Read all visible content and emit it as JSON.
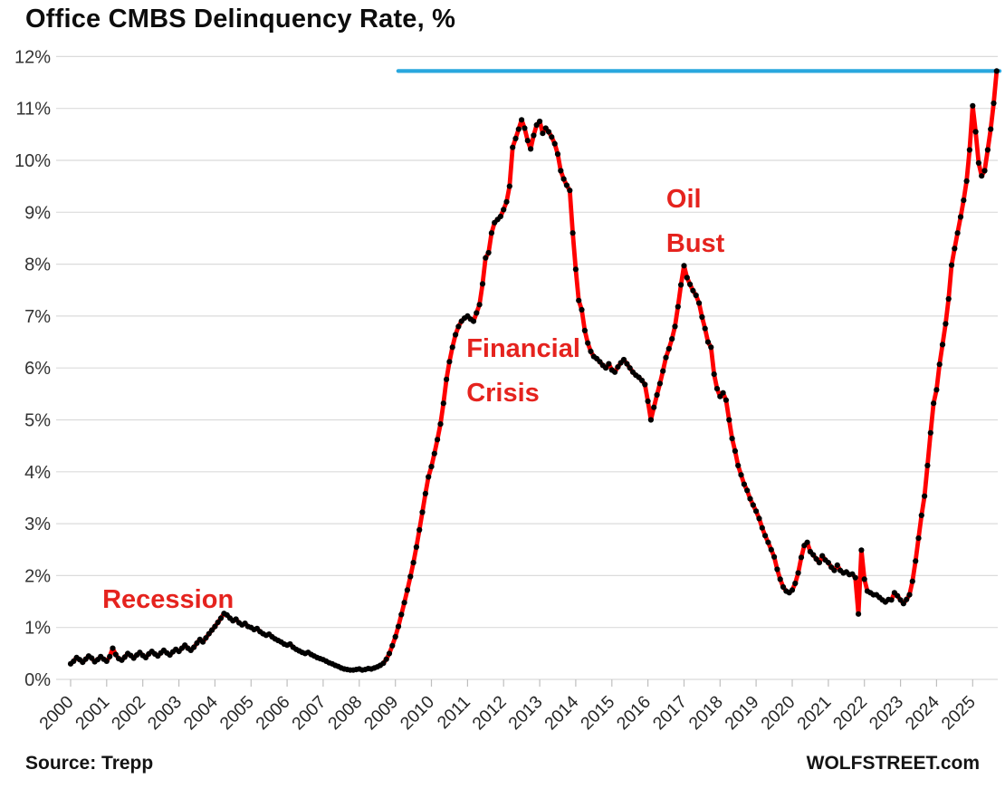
{
  "title": "Office CMBS Delinquency Rate, %",
  "source": "Source: Trepp",
  "watermark": "WOLFSTREET.com",
  "chart_data": {
    "type": "line",
    "title": "Office CMBS Delinquency Rate, %",
    "ylabel": "",
    "xlabel": "",
    "ylim": [
      0,
      12
    ],
    "y_ticks": [
      0,
      1,
      2,
      3,
      4,
      5,
      6,
      7,
      8,
      9,
      10,
      11,
      12
    ],
    "y_tick_suffix": "%",
    "x_tick_years": [
      2000,
      2001,
      2002,
      2003,
      2004,
      2005,
      2006,
      2007,
      2008,
      2009,
      2010,
      2011,
      2012,
      2013,
      2014,
      2015,
      2016,
      2017,
      2018,
      2019,
      2020,
      2021,
      2022,
      2023,
      2024,
      2025
    ],
    "grid": "horizontal",
    "legend_position": "none",
    "series": [
      {
        "name": "Office CMBS delinquency rate, monthly, %",
        "line_color": "#FF0000",
        "marker_color": "#000000",
        "start_year": 2000,
        "frequency": "monthly",
        "monthly_values": [
          0.3,
          0.35,
          0.42,
          0.38,
          0.33,
          0.39,
          0.45,
          0.41,
          0.34,
          0.38,
          0.44,
          0.39,
          0.35,
          0.44,
          0.6,
          0.48,
          0.4,
          0.37,
          0.43,
          0.5,
          0.46,
          0.41,
          0.47,
          0.52,
          0.46,
          0.42,
          0.49,
          0.54,
          0.49,
          0.45,
          0.51,
          0.56,
          0.51,
          0.47,
          0.53,
          0.58,
          0.54,
          0.6,
          0.66,
          0.6,
          0.56,
          0.62,
          0.7,
          0.77,
          0.72,
          0.8,
          0.88,
          0.95,
          1.02,
          1.1,
          1.18,
          1.27,
          1.24,
          1.18,
          1.13,
          1.16,
          1.09,
          1.05,
          1.08,
          1.02,
          1.0,
          0.96,
          0.98,
          0.92,
          0.88,
          0.85,
          0.87,
          0.82,
          0.78,
          0.75,
          0.72,
          0.68,
          0.66,
          0.68,
          0.62,
          0.58,
          0.55,
          0.52,
          0.5,
          0.52,
          0.48,
          0.45,
          0.42,
          0.4,
          0.38,
          0.35,
          0.32,
          0.3,
          0.27,
          0.25,
          0.22,
          0.2,
          0.19,
          0.18,
          0.18,
          0.19,
          0.2,
          0.18,
          0.19,
          0.21,
          0.2,
          0.22,
          0.24,
          0.27,
          0.31,
          0.39,
          0.5,
          0.65,
          0.82,
          1.02,
          1.25,
          1.48,
          1.72,
          1.98,
          2.25,
          2.55,
          2.88,
          3.22,
          3.58,
          3.9,
          4.1,
          4.35,
          4.62,
          4.92,
          5.32,
          5.78,
          6.12,
          6.4,
          6.64,
          6.8,
          6.9,
          6.96,
          7.0,
          6.94,
          6.9,
          7.06,
          7.22,
          7.62,
          8.12,
          8.22,
          8.6,
          8.8,
          8.86,
          8.92,
          9.05,
          9.2,
          9.5,
          10.25,
          10.42,
          10.6,
          10.78,
          10.62,
          10.38,
          10.22,
          10.48,
          10.68,
          10.75,
          10.52,
          10.62,
          10.55,
          10.45,
          10.32,
          10.12,
          9.8,
          9.64,
          9.52,
          9.42,
          8.6,
          7.9,
          7.3,
          7.12,
          6.72,
          6.48,
          6.32,
          6.22,
          6.18,
          6.12,
          6.05,
          6.0,
          6.08,
          5.96,
          5.92,
          6.02,
          6.1,
          6.16,
          6.08,
          6.0,
          5.92,
          5.86,
          5.82,
          5.76,
          5.68,
          5.36,
          5.0,
          5.24,
          5.48,
          5.7,
          5.94,
          6.2,
          6.37,
          6.56,
          6.8,
          7.18,
          7.6,
          7.97,
          7.74,
          7.61,
          7.49,
          7.4,
          7.25,
          6.98,
          6.76,
          6.5,
          6.4,
          5.88,
          5.6,
          5.45,
          5.52,
          5.38,
          5.0,
          4.64,
          4.4,
          4.12,
          3.94,
          3.76,
          3.64,
          3.48,
          3.36,
          3.24,
          3.1,
          2.92,
          2.77,
          2.64,
          2.5,
          2.36,
          2.12,
          1.93,
          1.78,
          1.7,
          1.67,
          1.72,
          1.85,
          2.05,
          2.35,
          2.58,
          2.64,
          2.46,
          2.4,
          2.32,
          2.25,
          2.38,
          2.3,
          2.25,
          2.16,
          2.1,
          2.2,
          2.1,
          2.05,
          2.07,
          2.02,
          2.03,
          1.96,
          1.26,
          2.49,
          1.93,
          1.7,
          1.67,
          1.63,
          1.63,
          1.58,
          1.53,
          1.49,
          1.54,
          1.53,
          1.67,
          1.61,
          1.53,
          1.46,
          1.54,
          1.63,
          1.89,
          2.28,
          2.72,
          3.16,
          3.53,
          4.12,
          4.75,
          5.32,
          5.58,
          6.07,
          6.45,
          6.85,
          7.33,
          7.98,
          8.3,
          8.6,
          8.91,
          9.23,
          9.6,
          10.2,
          11.05,
          10.55,
          9.95,
          9.7,
          9.8,
          10.2,
          10.6,
          11.1,
          11.72
        ]
      }
    ],
    "reference_line": {
      "value": 11.72,
      "from_year": 2009.08,
      "to_year": 2025.75,
      "color": "#29A7DE"
    },
    "annotations": [
      {
        "lines": [
          "Recession"
        ],
        "year": 2000.88,
        "value": 1.85,
        "color": "#E5231E"
      },
      {
        "lines": [
          "Financial",
          "Crisis"
        ],
        "year": 2010.97,
        "value": 6.68,
        "color": "#E5231E"
      },
      {
        "lines": [
          "Oil",
          "Bust"
        ],
        "year": 2016.51,
        "value": 9.56,
        "color": "#E5231E"
      }
    ]
  }
}
